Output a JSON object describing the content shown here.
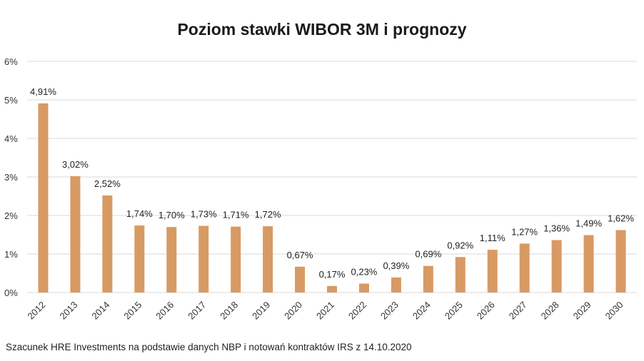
{
  "chart_data": {
    "type": "bar",
    "title": "Poziom stawki WIBOR 3M i prognozy",
    "xlabel": "",
    "ylabel": "",
    "ylim": [
      0,
      6
    ],
    "yticks": [
      "0%",
      "1%",
      "2%",
      "3%",
      "4%",
      "5%",
      "6%"
    ],
    "grid": true,
    "bar_color": "#D89A63",
    "categories": [
      "2012",
      "2013",
      "2014",
      "2015",
      "2016",
      "2017",
      "2018",
      "2019",
      "2020",
      "2021",
      "2022",
      "2023",
      "2024",
      "2025",
      "2026",
      "2027",
      "2028",
      "2029",
      "2030"
    ],
    "values": [
      4.91,
      3.02,
      2.52,
      1.74,
      1.7,
      1.73,
      1.71,
      1.72,
      0.67,
      0.17,
      0.23,
      0.39,
      0.69,
      0.92,
      1.11,
      1.27,
      1.36,
      1.49,
      1.62
    ],
    "data_labels": [
      "4,91%",
      "3,02%",
      "2,52%",
      "1,74%",
      "1,70%",
      "1,73%",
      "1,71%",
      "1,72%",
      "0,67%",
      "0,17%",
      "0,23%",
      "0,39%",
      "0,69%",
      "0,92%",
      "1,11%",
      "1,27%",
      "1,36%",
      "1,49%",
      "1,62%"
    ],
    "footnote": "Szacunek HRE Investments na podstawie danych NBP i notowań kontraktów IRS z 14.10.2020"
  }
}
